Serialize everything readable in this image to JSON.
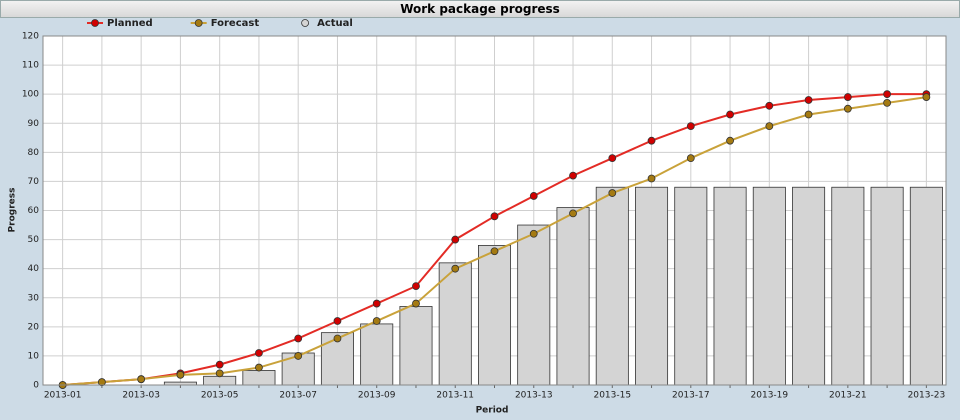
{
  "chart_data": {
    "type": "line",
    "title": "Work package progress",
    "x_label": "Period",
    "y_label": "Progress",
    "categories": [
      "2013-01",
      null,
      "2013-03",
      null,
      "2013-05",
      null,
      "2013-07",
      null,
      "2013-09",
      null,
      "2013-11",
      null,
      "2013-13",
      null,
      "2013-15",
      null,
      "2013-17",
      null,
      "2013-19",
      null,
      "2013-21",
      null,
      "2013-23"
    ],
    "ylim": [
      0,
      120
    ],
    "yticks": [
      0,
      10,
      20,
      30,
      40,
      50,
      60,
      70,
      80,
      90,
      100,
      110,
      120
    ],
    "grid": true,
    "legend": "top-left",
    "series": [
      {
        "name": "Planned",
        "type": "line",
        "color": "#e32b25",
        "marker_color": "#d10000",
        "values": [
          0,
          1,
          2,
          4,
          7,
          11,
          16,
          22,
          28,
          34,
          50,
          58,
          65,
          72,
          78,
          84,
          89,
          93,
          96,
          98,
          99,
          100,
          100
        ]
      },
      {
        "name": "Forecast",
        "type": "line",
        "color": "#c9a23a",
        "marker_color": "#a47a12",
        "values": [
          0,
          1,
          2,
          3.5,
          4,
          6,
          10,
          16,
          22,
          28,
          40,
          46,
          52,
          59,
          66,
          71,
          78,
          84,
          89,
          93,
          95,
          97,
          99
        ]
      },
      {
        "name": "Actual",
        "type": "bar",
        "color": "#d4d4d4",
        "values": [
          null,
          null,
          null,
          1,
          3,
          5,
          11,
          18,
          21,
          27,
          42,
          48,
          55,
          61,
          68,
          68,
          68,
          68,
          68,
          68,
          68,
          68,
          68
        ]
      }
    ]
  }
}
